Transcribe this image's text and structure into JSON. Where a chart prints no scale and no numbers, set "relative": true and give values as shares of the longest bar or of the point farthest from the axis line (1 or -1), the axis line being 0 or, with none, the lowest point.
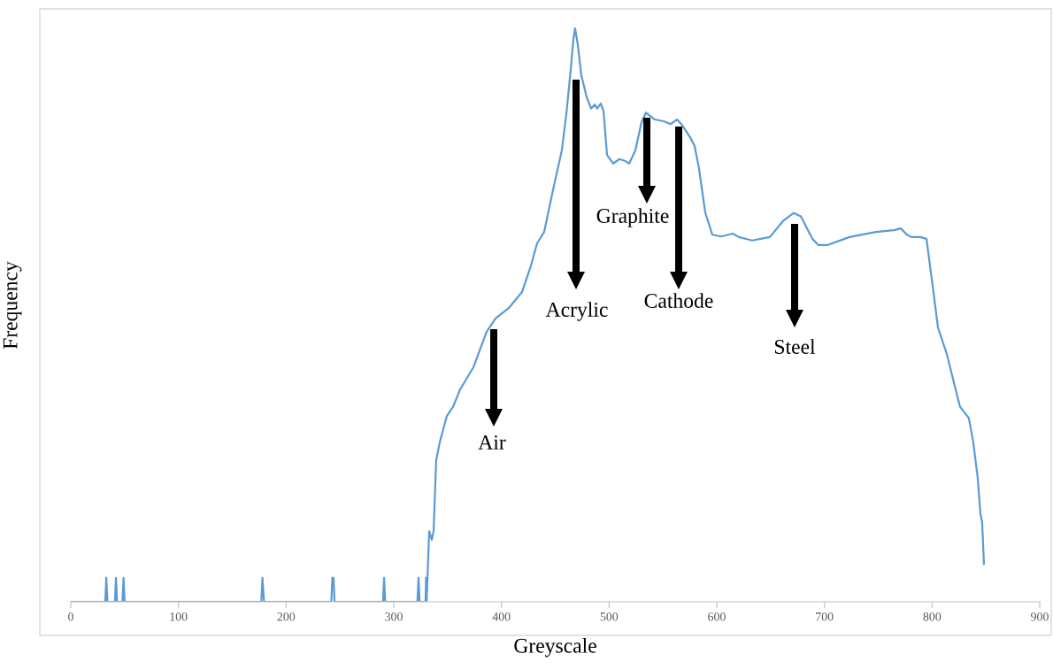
{
  "chart_data": {
    "type": "line",
    "relative": true,
    "xlabel": "Greyscale",
    "ylabel": "Frequency",
    "xlim": [
      0,
      900
    ],
    "xticks": [
      0,
      100,
      200,
      300,
      400,
      500,
      600,
      700,
      800,
      900
    ],
    "tick_labels": "x",
    "grid": false,
    "legend": false,
    "marker": "none",
    "line_style": "solid",
    "series": [
      {
        "color": "#5b9bd5",
        "x": [
          0,
          32,
          33,
          34,
          41,
          42,
          43,
          48,
          49,
          50,
          177,
          178,
          179.5,
          242,
          243,
          244,
          245,
          290,
          291,
          292,
          322,
          323,
          324,
          329.5,
          330,
          330.5,
          332.9,
          335.3,
          337.0,
          339.4,
          342.7,
          349.3,
          355.1,
          361.6,
          374.0,
          386.3,
          394.5,
          406.8,
          419.1,
          427.4,
          433.1,
          439.7,
          447.9,
          456.1,
          460.2,
          464.3,
          466.8,
          468.4,
          470.9,
          474.2,
          479.2,
          483.3,
          486.6,
          489.0,
          492.3,
          494.8,
          498.1,
          503.8,
          509.6,
          514.5,
          518.6,
          524.4,
          530.1,
          534.2,
          542.4,
          550.7,
          557.2,
          563.0,
          567.1,
          575.3,
          579.4,
          583.5,
          589.3,
          595.9,
          604.1,
          614.8,
          620.5,
          632.9,
          649.3,
          661.6,
          671.5,
          678.1,
          688.8,
          694.5,
          702.7,
          723.3,
          747.9,
          764.4,
          770.9,
          776.7,
          780.8,
          789.0,
          794.8,
          801.3,
          805.5,
          813.7,
          821.9,
          826.0,
          834.2,
          838.3,
          842.4,
          844.9,
          846.5,
          848.2
        ],
        "values": [
          0,
          0,
          0.042,
          0,
          0,
          0.042,
          0,
          0,
          0.042,
          0,
          0,
          0.042,
          0,
          0,
          0.042,
          0.042,
          0,
          0,
          0.042,
          0,
          0,
          0.042,
          0,
          0,
          0.042,
          0,
          0.123,
          0.108,
          0.123,
          0.247,
          0.278,
          0.324,
          0.34,
          0.37,
          0.409,
          0.471,
          0.494,
          0.512,
          0.54,
          0.586,
          0.625,
          0.645,
          0.718,
          0.787,
          0.849,
          0.926,
          0.98,
          1.0,
          0.972,
          0.918,
          0.88,
          0.86,
          0.867,
          0.86,
          0.869,
          0.856,
          0.779,
          0.764,
          0.772,
          0.769,
          0.764,
          0.787,
          0.836,
          0.853,
          0.841,
          0.838,
          0.833,
          0.841,
          0.833,
          0.81,
          0.795,
          0.756,
          0.679,
          0.64,
          0.637,
          0.642,
          0.636,
          0.63,
          0.636,
          0.664,
          0.678,
          0.672,
          0.633,
          0.622,
          0.622,
          0.636,
          0.645,
          0.648,
          0.651,
          0.64,
          0.636,
          0.636,
          0.633,
          0.54,
          0.478,
          0.432,
          0.37,
          0.34,
          0.32,
          0.278,
          0.216,
          0.154,
          0.139,
          0.066
        ]
      }
    ],
    "annotations": [
      "Air",
      "Acrylic",
      "Graphite",
      "Cathode",
      "Steel"
    ]
  }
}
